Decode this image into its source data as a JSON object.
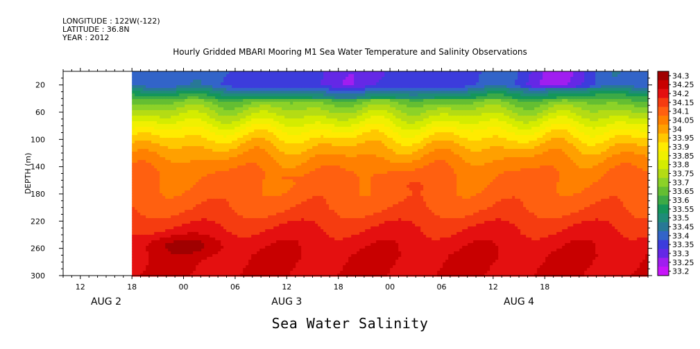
{
  "meta": {
    "longitude": "LONGITUDE : 122W(-122)",
    "latitude": "LATITUDE : 36.8N",
    "year": "YEAR : 2012"
  },
  "title": "Hourly Gridded MBARI Mooring M1 Sea Water Temperature and Salinity Observations",
  "footer_title": "Sea Water Salinity",
  "chart_data": {
    "type": "heatmap",
    "variable": "Sea Water Salinity",
    "ylabel": "DEPTH (m)",
    "y_range": [
      0,
      300
    ],
    "y_reversed": true,
    "y_ticks": [
      20,
      60,
      100,
      140,
      180,
      220,
      260,
      300
    ],
    "x_start_hours": -14,
    "x_end_hours": 54,
    "data_start_hours": -6,
    "x_ticks": [
      {
        "h": -12,
        "label": "12"
      },
      {
        "h": -6,
        "label": "18"
      },
      {
        "h": 0,
        "label": "00"
      },
      {
        "h": 6,
        "label": "06"
      },
      {
        "h": 12,
        "label": "12"
      },
      {
        "h": 18,
        "label": "18"
      },
      {
        "h": 24,
        "label": "00"
      },
      {
        "h": 30,
        "label": "06"
      },
      {
        "h": 36,
        "label": "12"
      },
      {
        "h": 42,
        "label": "18"
      }
    ],
    "date_labels": [
      {
        "h": -9,
        "label": "AUG  2"
      },
      {
        "h": 12,
        "label": "AUG  3"
      },
      {
        "h": 39,
        "label": "AUG  4"
      }
    ],
    "colorbar": {
      "levels": [
        "34.3",
        "34.25",
        "34.2",
        "34.15",
        "34.1",
        "34.05",
        "34",
        "33.95",
        "33.9",
        "33.85",
        "33.8",
        "33.75",
        "33.7",
        "33.65",
        "33.6",
        "33.55",
        "33.5",
        "33.45",
        "33.4",
        "33.35",
        "33.3",
        "33.25",
        "33.2"
      ],
      "colors": [
        "#a00000",
        "#c80000",
        "#e41010",
        "#f53c10",
        "#ff6010",
        "#ff8000",
        "#ffa000",
        "#ffc800",
        "#ffeb00",
        "#f0f000",
        "#d4ec00",
        "#b4dc14",
        "#8cd228",
        "#64be32",
        "#3caa46",
        "#14965a",
        "#1e8c78",
        "#287896",
        "#3264c8",
        "#3c3cdc",
        "#6428e6",
        "#a01ef0",
        "#c814fa"
      ]
    },
    "profile": [
      {
        "depth": 5,
        "salinity": 33.45
      },
      {
        "depth": 20,
        "salinity": 33.45
      },
      {
        "depth": 35,
        "salinity": 33.62
      },
      {
        "depth": 50,
        "salinity": 33.72
      },
      {
        "depth": 70,
        "salinity": 33.82
      },
      {
        "depth": 90,
        "salinity": 33.92
      },
      {
        "depth": 110,
        "salinity": 34.0
      },
      {
        "depth": 130,
        "salinity": 34.06
      },
      {
        "depth": 150,
        "salinity": 34.1
      },
      {
        "depth": 180,
        "salinity": 34.12
      },
      {
        "depth": 200,
        "salinity": 34.14
      },
      {
        "depth": 215,
        "salinity": 34.17
      },
      {
        "depth": 230,
        "salinity": 34.2
      },
      {
        "depth": 250,
        "salinity": 34.23
      },
      {
        "depth": 270,
        "salinity": 34.25
      },
      {
        "depth": 300,
        "salinity": 34.25
      }
    ]
  }
}
